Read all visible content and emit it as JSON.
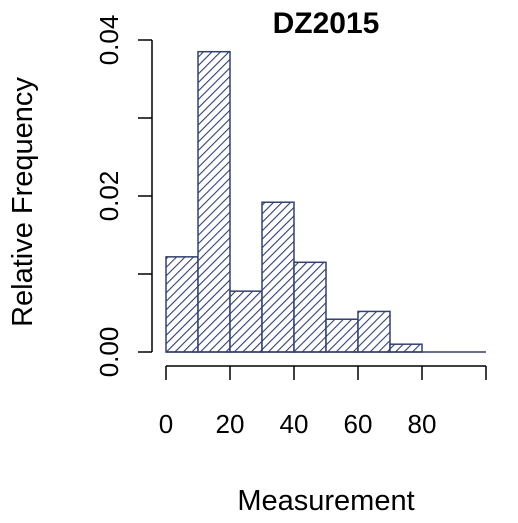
{
  "chart_data": {
    "type": "bar",
    "title": "DZ2015",
    "xlabel": "Measurement",
    "ylabel": "Relative Frequency",
    "bin_edges": [
      0,
      10,
      20,
      30,
      40,
      50,
      60,
      70,
      80,
      90,
      100
    ],
    "values": [
      0.0122,
      0.0385,
      0.0078,
      0.0192,
      0.0115,
      0.0042,
      0.0052,
      0.001,
      0.0,
      0.0
    ],
    "xlim": [
      0,
      100
    ],
    "ylim": [
      0,
      0.04
    ],
    "x_ticks": [
      0,
      20,
      40,
      60,
      80,
      100
    ],
    "x_tick_labels": [
      "0",
      "20",
      "40",
      "60",
      "80",
      ""
    ],
    "y_ticks": [
      0,
      0.01,
      0.02,
      0.03,
      0.04
    ],
    "y_tick_labels": [
      "0.00",
      "",
      "0.02",
      "",
      "0.04"
    ],
    "grid": false,
    "legend": "none",
    "bar_fill": "diagonal-hatch",
    "bar_color": "#34406e"
  }
}
